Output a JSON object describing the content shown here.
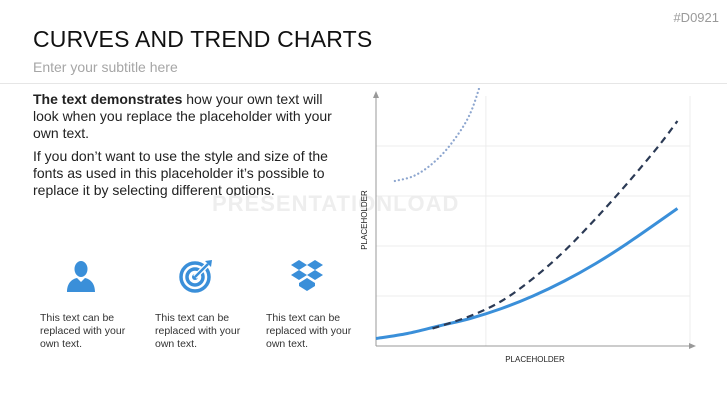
{
  "slide_code": "#D0921",
  "title": "CURVES AND TREND CHARTS",
  "subtitle": "Enter your subtitle here",
  "body": {
    "para1_bold": "The text demonstrates",
    "para1_rest": " how your own text will look when you replace the placeholder with your own text.",
    "para2": "If you don’t want to use the style and size of the fonts as used in this placeholder it’s possible to replace it by selecting different options."
  },
  "icons": [
    {
      "icon": "person-icon",
      "caption": "This text can be replaced with your own text."
    },
    {
      "icon": "target-icon",
      "caption": "This text can be replaced with your own text."
    },
    {
      "icon": "dropbox-icon",
      "caption": "This text can be replaced with your own text."
    }
  ],
  "watermark": "PRESENTATIONLOAD",
  "colors": {
    "accent_blue": "#3a8fd9",
    "dashed_navy": "#2b3a55",
    "dotted_blue": "#8da6cf"
  },
  "chart_data": {
    "type": "line",
    "xlabel": "PLACEHOLDER",
    "ylabel": "PLACEHOLDER",
    "grid": true,
    "legend": "none",
    "xlim": [
      0,
      10
    ],
    "ylim": [
      0,
      10
    ],
    "series": [
      {
        "style": "solid",
        "color": "#3a8fd9",
        "x": [
          0,
          1,
          2,
          3,
          4,
          5,
          6,
          7,
          8,
          9.6
        ],
        "y": [
          0.3,
          0.5,
          0.8,
          1.1,
          1.5,
          2.0,
          2.6,
          3.3,
          4.1,
          5.5
        ]
      },
      {
        "style": "dashed",
        "color": "#2b3a55",
        "x": [
          1.8,
          3,
          4,
          5,
          6,
          7,
          8,
          9,
          9.6
        ],
        "y": [
          0.7,
          1.2,
          1.8,
          2.7,
          3.8,
          5.1,
          6.5,
          8.0,
          9.0
        ]
      },
      {
        "style": "dotted",
        "color": "#8da6cf",
        "x": [
          0.6,
          1.2,
          1.8,
          2.4,
          3.0,
          3.45
        ],
        "y": [
          6.6,
          6.8,
          7.3,
          8.1,
          9.3,
          11.0
        ]
      }
    ]
  }
}
